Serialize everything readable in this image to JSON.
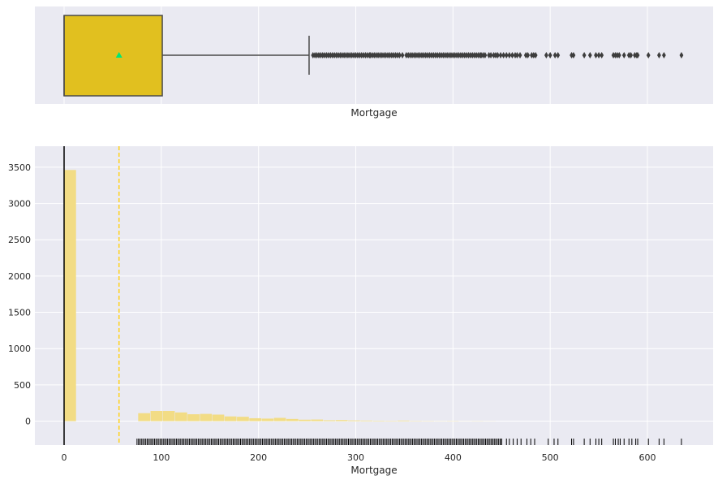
{
  "chart_data": [
    {
      "type": "box",
      "xlabel": "Mortgage",
      "xlim": [
        -30,
        660
      ],
      "box": {
        "q1": 0,
        "median": 0,
        "q3": 101,
        "mean": 56.5,
        "whisker_low": 0,
        "whisker_high": 252
      },
      "outliers": [
        256,
        258,
        260,
        262,
        264,
        266,
        268,
        270,
        272,
        274,
        276,
        278,
        280,
        282,
        284,
        286,
        288,
        290,
        292,
        294,
        296,
        298,
        300,
        302,
        304,
        306,
        308,
        310,
        312,
        314,
        315,
        317,
        319,
        321,
        323,
        325,
        327,
        329,
        331,
        333,
        335,
        337,
        339,
        341,
        343,
        345,
        348,
        352,
        354,
        356,
        358,
        360,
        362,
        364,
        366,
        368,
        370,
        372,
        374,
        376,
        378,
        380,
        382,
        384,
        386,
        388,
        390,
        392,
        394,
        396,
        398,
        400,
        402,
        404,
        406,
        408,
        410,
        412,
        414,
        416,
        418,
        420,
        422,
        424,
        426,
        428,
        429,
        431,
        433,
        437,
        439,
        442,
        444,
        446,
        449,
        452,
        455,
        458,
        461,
        464,
        466,
        469,
        475,
        477,
        481,
        483,
        485,
        496,
        500,
        505,
        508,
        522,
        524,
        535,
        541,
        547,
        550,
        553,
        565,
        567,
        569,
        571,
        576,
        581,
        583,
        587,
        589,
        590,
        601,
        612,
        617,
        635
      ],
      "colors": {
        "box": "#e1c01f",
        "mean": "#00e676",
        "line": "#4a4a4a"
      }
    },
    {
      "type": "histogram",
      "xlabel": "Mortgage",
      "xlim": [
        -30,
        660
      ],
      "ylim": [
        -330,
        3790
      ],
      "xticks": [
        0,
        100,
        200,
        300,
        400,
        500,
        600
      ],
      "yticks": [
        0,
        500,
        1000,
        1500,
        2000,
        2500,
        3000,
        3500
      ],
      "bin_width": 12.7,
      "bins_start": 0,
      "counts": [
        3462,
        0,
        0,
        0,
        0,
        0,
        110,
        140,
        140,
        120,
        95,
        100,
        90,
        65,
        60,
        40,
        35,
        45,
        30,
        20,
        22,
        12,
        15,
        10,
        8,
        6,
        5,
        8,
        4,
        3,
        2,
        3,
        1,
        2,
        1,
        0
      ],
      "mean_line": 56.5,
      "rug_range": [
        75,
        635
      ],
      "rug_sparse": [
        450,
        455,
        458,
        462,
        466,
        470,
        476,
        480,
        484,
        498,
        504,
        508,
        522,
        524,
        535,
        541,
        547,
        550,
        553,
        565,
        567,
        570,
        572,
        576,
        581,
        584,
        588,
        590,
        601,
        612,
        617,
        635
      ],
      "colors": {
        "bars": "#f2dc85",
        "mean_line": "#ffd21a",
        "rug": "#000000",
        "background": "#eaeaf2",
        "grid": "#ffffff"
      },
      "grid": true
    }
  ]
}
